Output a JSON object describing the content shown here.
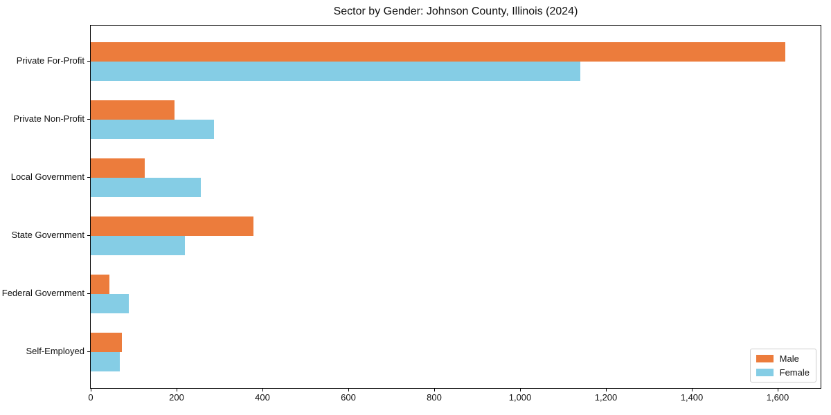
{
  "chart_data": {
    "type": "bar",
    "orientation": "horizontal",
    "title": "Sector by Gender: Johnson County, Illinois (2024)",
    "categories": [
      "Private For-Profit",
      "Private Non-Profit",
      "Local Government",
      "State Government",
      "Federal Government",
      "Self-Employed"
    ],
    "series": [
      {
        "name": "Male",
        "color": "#ec7c3c",
        "values": [
          1618,
          195,
          125,
          379,
          44,
          73
        ]
      },
      {
        "name": "Female",
        "color": "#85cde5",
        "values": [
          1140,
          287,
          256,
          220,
          88,
          67
        ]
      }
    ],
    "xlim": [
      0,
      1700
    ],
    "xticks": [
      0,
      200,
      400,
      600,
      800,
      1000,
      1200,
      1400,
      1600
    ],
    "xtick_labels": [
      "0",
      "200",
      "400",
      "600",
      "800",
      "1,000",
      "1,200",
      "1,400",
      "1,600"
    ],
    "xlabel": "",
    "ylabel": "",
    "grid": false,
    "legend_position": "lower right",
    "spine_color": "#000000",
    "background_color": "#ffffff"
  }
}
